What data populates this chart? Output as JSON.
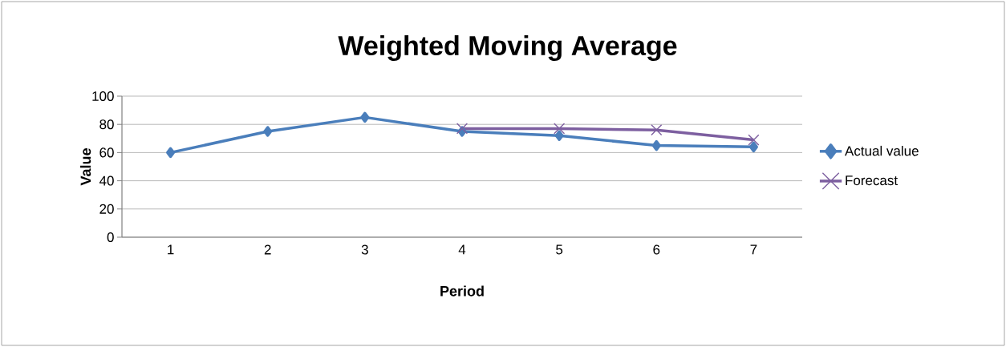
{
  "chart_data": {
    "type": "line",
    "title": "Weighted Moving Average",
    "xlabel": "Period",
    "ylabel": "Value",
    "categories": [
      "1",
      "2",
      "3",
      "4",
      "5",
      "6",
      "7"
    ],
    "series": [
      {
        "name": "Actual value",
        "color": "#4a7ebb",
        "marker": "diamond",
        "values": [
          60,
          75,
          85,
          75,
          72,
          65,
          64
        ]
      },
      {
        "name": "Forecast",
        "color": "#7d5fa0",
        "marker": "cross",
        "values": [
          null,
          null,
          null,
          77,
          77,
          76,
          69
        ]
      }
    ],
    "ylim": [
      0,
      100
    ],
    "yticks": [
      0,
      20,
      40,
      60,
      80,
      100
    ],
    "grid": "y",
    "legend": "right"
  }
}
